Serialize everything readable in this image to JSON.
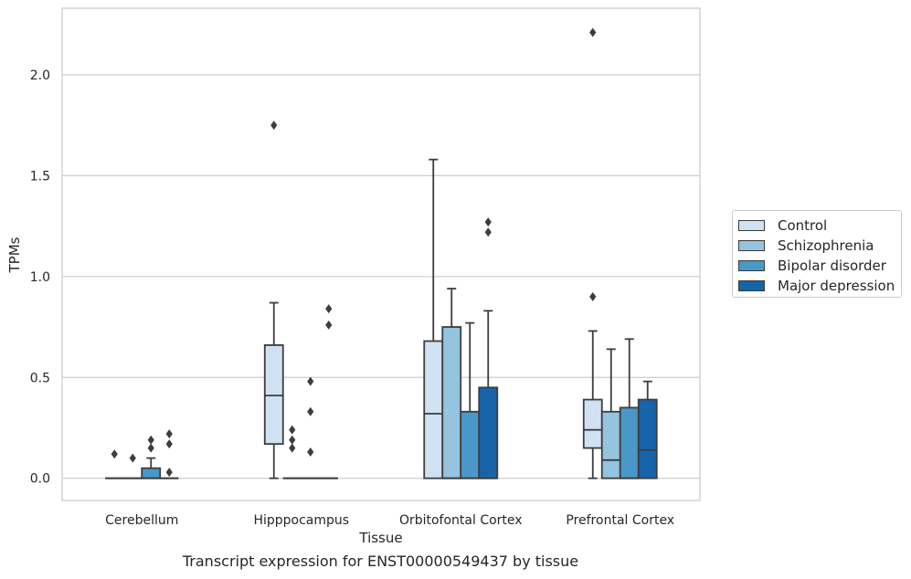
{
  "caption": "Transcript expression for ENST00000549437 by tissue",
  "chart_data": {
    "type": "box",
    "xlabel": "Tissue",
    "ylabel": "TPMs",
    "categories": [
      "Cerebellum",
      "Hipppocampus",
      "Orbitofontal Cortex",
      "Prefrontal Cortex"
    ],
    "ylim": [
      -0.11,
      2.33
    ],
    "yticks": [
      0.0,
      0.5,
      1.0,
      1.5,
      2.0
    ],
    "ytick_labels": [
      "0.0",
      "0.5",
      "1.0",
      "1.5",
      "2.0"
    ],
    "grid": true,
    "legend_position": "right",
    "series": [
      {
        "name": "Control",
        "color": "#d0e1f2",
        "boxes": [
          {
            "q1": 0,
            "median": 0,
            "q3": 0,
            "whislo": 0,
            "whishi": 0,
            "fliers": [
              0.12
            ]
          },
          {
            "q1": 0.17,
            "median": 0.41,
            "q3": 0.66,
            "whislo": 0,
            "whishi": 0.87,
            "fliers": [
              1.75
            ]
          },
          {
            "q1": 0,
            "median": 0.32,
            "q3": 0.68,
            "whislo": 0,
            "whishi": 1.58,
            "fliers": []
          },
          {
            "q1": 0.15,
            "median": 0.24,
            "q3": 0.39,
            "whislo": 0,
            "whishi": 0.73,
            "fliers": [
              0.9,
              2.21
            ]
          }
        ]
      },
      {
        "name": "Schizophrenia",
        "color": "#94c4df",
        "boxes": [
          {
            "q1": 0,
            "median": 0,
            "q3": 0,
            "whislo": 0,
            "whishi": 0,
            "fliers": [
              0.1
            ]
          },
          {
            "q1": 0,
            "median": 0,
            "q3": 0,
            "whislo": 0,
            "whishi": 0,
            "fliers": [
              0.15,
              0.19,
              0.24
            ]
          },
          {
            "q1": 0,
            "median": 0,
            "q3": 0.75,
            "whislo": 0,
            "whishi": 0.94,
            "fliers": []
          },
          {
            "q1": 0,
            "median": 0.09,
            "q3": 0.33,
            "whislo": 0,
            "whishi": 0.64,
            "fliers": []
          }
        ]
      },
      {
        "name": "Bipolar disorder",
        "color": "#4a98c9",
        "boxes": [
          {
            "q1": 0,
            "median": 0,
            "q3": 0.05,
            "whislo": 0,
            "whishi": 0.1,
            "fliers": [
              0.15,
              0.19
            ]
          },
          {
            "q1": 0,
            "median": 0,
            "q3": 0,
            "whislo": 0,
            "whishi": 0,
            "fliers": [
              0.13,
              0.33,
              0.48
            ]
          },
          {
            "q1": 0,
            "median": 0,
            "q3": 0.33,
            "whislo": 0,
            "whishi": 0.77,
            "fliers": []
          },
          {
            "q1": 0,
            "median": 0,
            "q3": 0.35,
            "whislo": 0,
            "whishi": 0.69,
            "fliers": []
          }
        ]
      },
      {
        "name": "Major depression",
        "color": "#1764ab",
        "boxes": [
          {
            "q1": 0,
            "median": 0,
            "q3": 0,
            "whislo": 0,
            "whishi": 0,
            "fliers": [
              0.03,
              0.17,
              0.22
            ]
          },
          {
            "q1": 0,
            "median": 0,
            "q3": 0,
            "whislo": 0,
            "whishi": 0,
            "fliers": [
              0.76,
              0.84
            ]
          },
          {
            "q1": 0,
            "median": 0,
            "q3": 0.45,
            "whislo": 0,
            "whishi": 0.83,
            "fliers": [
              1.22,
              1.27
            ]
          },
          {
            "q1": 0,
            "median": 0.14,
            "q3": 0.39,
            "whislo": 0,
            "whishi": 0.48,
            "fliers": []
          }
        ]
      }
    ]
  }
}
